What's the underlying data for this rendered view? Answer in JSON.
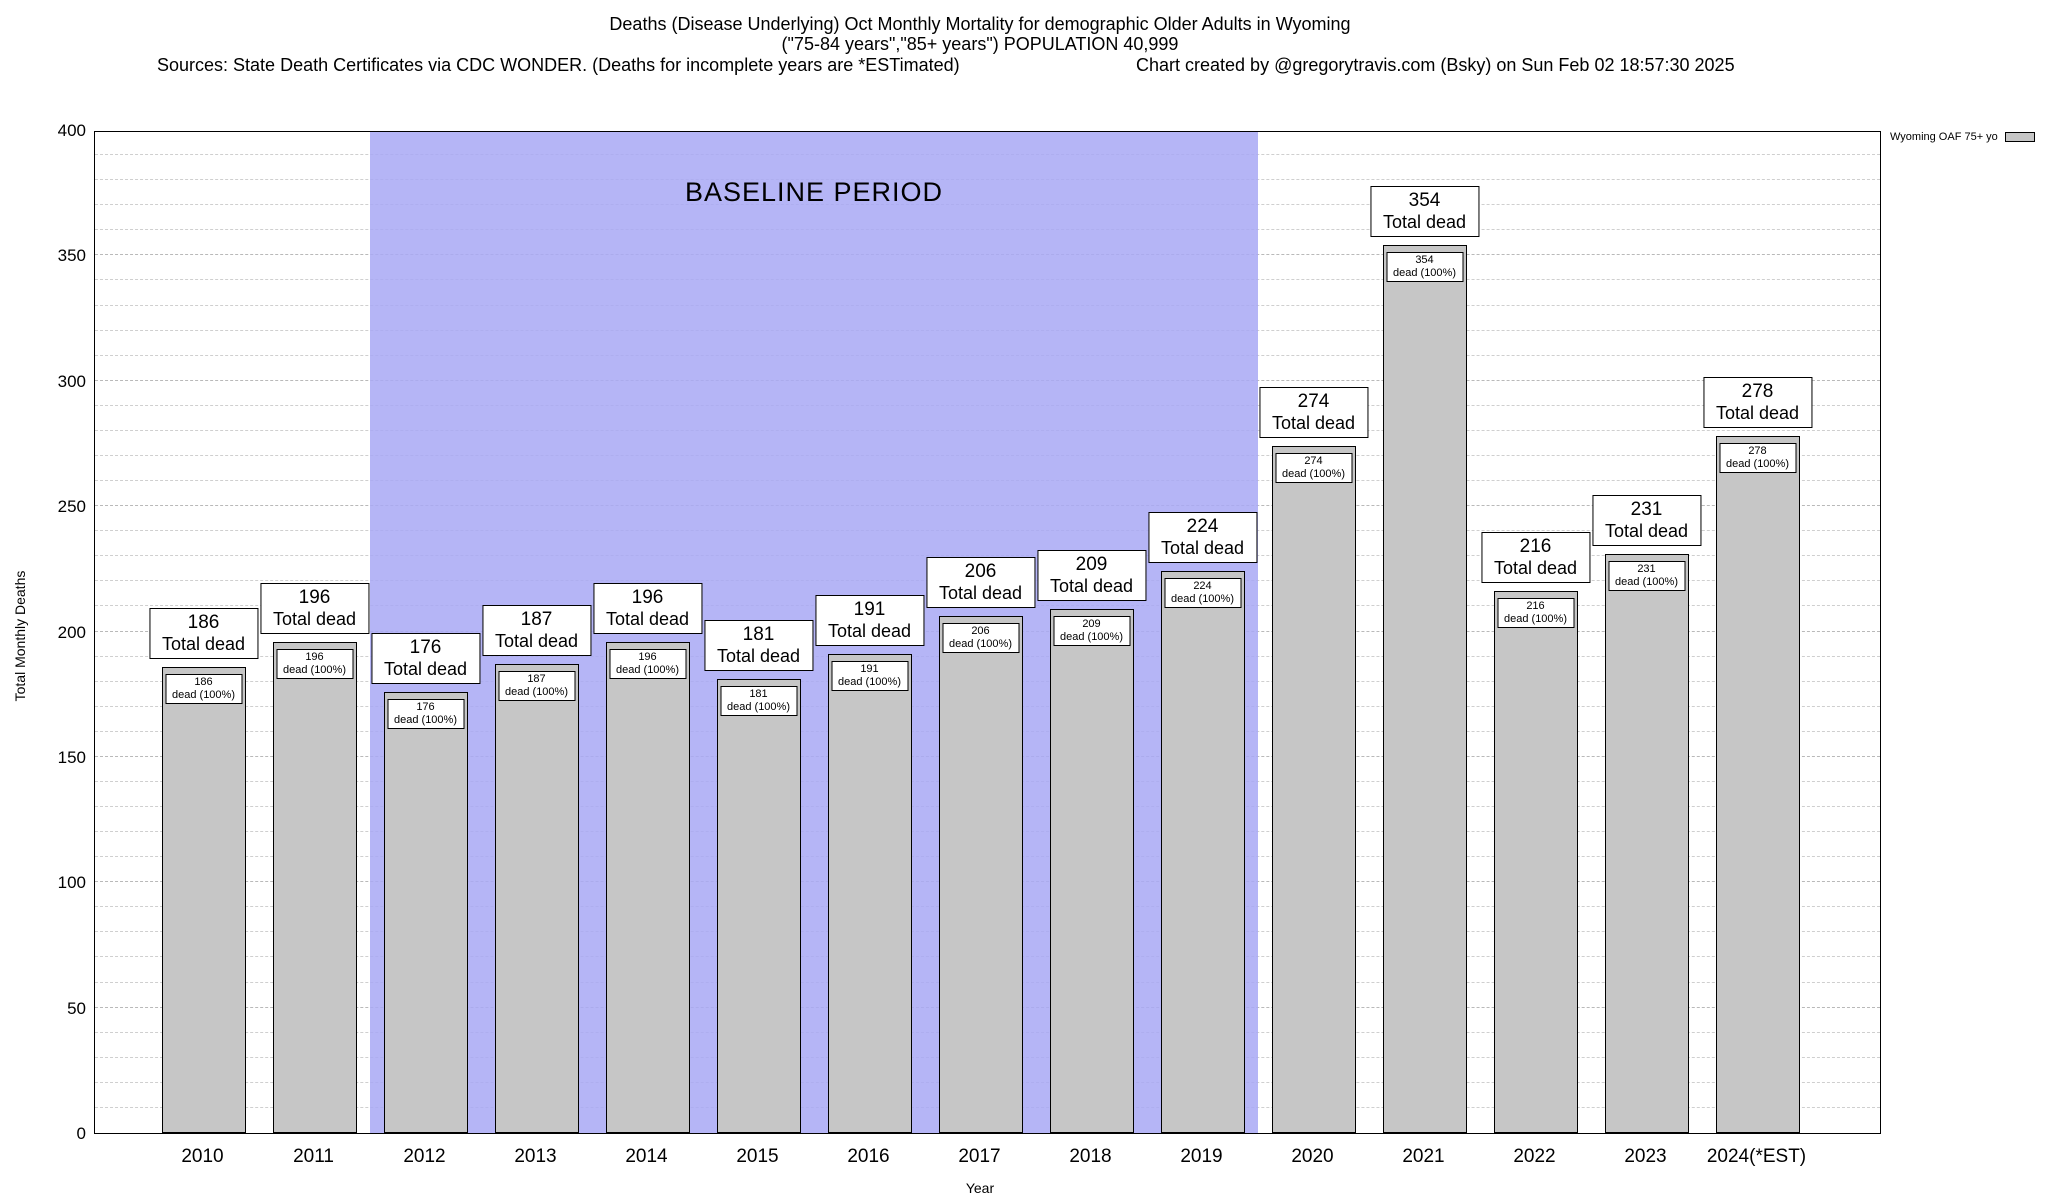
{
  "header": {
    "title_line1": "Deaths (Disease Underlying) Oct Monthly Mortality for demographic Older Adults in Wyoming",
    "title_line2": "(\"75-84 years\",\"85+ years\") POPULATION 40,999",
    "sources": "Sources: State Death Certificates via CDC WONDER. (Deaths for incomplete years are *ESTimated)",
    "credit": "Chart created by @gregorytravis.com (Bsky) on Sun Feb 02 18:57:30 2025"
  },
  "chart_data": {
    "type": "bar",
    "title": "Deaths (Disease Underlying) Oct Monthly Mortality for demographic Older Adults in Wyoming",
    "subtitle": "(\"75-84 years\",\"85+ years\") POPULATION 40,999",
    "categories": [
      "2010",
      "2011",
      "2012",
      "2013",
      "2014",
      "2015",
      "2016",
      "2017",
      "2018",
      "2019",
      "2020",
      "2021",
      "2022",
      "2023",
      "2024(*EST)"
    ],
    "values": [
      186,
      196,
      176,
      187,
      196,
      181,
      191,
      206,
      209,
      224,
      274,
      354,
      216,
      231,
      278
    ],
    "bar_top_label_suffix": "Total dead",
    "bar_inner_label_suffix": "dead (100%)",
    "xlabel": "Year",
    "ylabel": "Total Monthly Deaths",
    "ylim": [
      0,
      400
    ],
    "ytick_step": 50,
    "minor_grid_step": 10,
    "grid": true,
    "bar_color": "#c6c6c6",
    "baseline": {
      "label": "BASELINE PERIOD",
      "start_index": 2,
      "end_index": 9,
      "start_category": "2012",
      "end_category": "2019",
      "color": "#a8a8f4"
    },
    "legend": {
      "label": "Wyoming OAF 75+ yo",
      "position": "top-right"
    }
  }
}
